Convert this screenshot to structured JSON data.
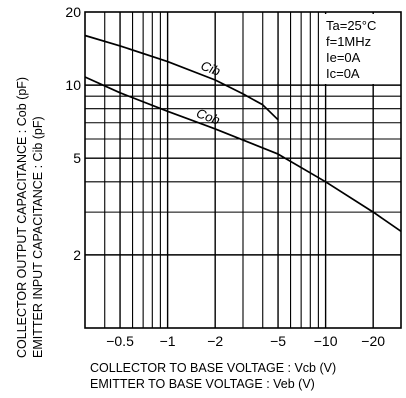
{
  "chart_data": {
    "type": "line",
    "title": "",
    "xscale": "log",
    "yscale": "log",
    "xlim": [
      0.3,
      30
    ],
    "ylim": [
      1,
      20
    ],
    "grid": true,
    "x_ticks": [
      {
        "value": 0.5,
        "label": "−0.5"
      },
      {
        "value": 1,
        "label": "−1"
      },
      {
        "value": 2,
        "label": "−2"
      },
      {
        "value": 5,
        "label": "−5"
      },
      {
        "value": 10,
        "label": "−10"
      },
      {
        "value": 20,
        "label": "−20"
      }
    ],
    "y_ticks": [
      {
        "value": 20,
        "label": "20"
      },
      {
        "value": 10,
        "label": "10"
      },
      {
        "value": 5,
        "label": "5"
      },
      {
        "value": 2,
        "label": "2"
      }
    ],
    "x_minor_gridlines": [
      0.4,
      0.6,
      0.7,
      0.8,
      0.9,
      3,
      4,
      6,
      7,
      8,
      9,
      30
    ],
    "y_minor_gridlines": [
      3,
      4,
      6,
      7,
      8,
      9
    ],
    "xlabel": [
      "COLLECTOR TO BASE VOLTAGE : Vcb (V)",
      "EMITTER TO BASE VOLTAGE : Veb (V)"
    ],
    "ylabel": [
      "COLLECTOR OUTPUT CAPACITANCE : Cob (pF)",
      "EMITTER INPUT CAPACITANCE : Cib (pF)"
    ],
    "series": [
      {
        "name": "Cib",
        "x": [
          0.3,
          0.5,
          1,
          2,
          3,
          4,
          5
        ],
        "y": [
          16,
          14.5,
          12.5,
          10.5,
          9.2,
          8.3,
          7.2
        ]
      },
      {
        "name": "Cob",
        "x": [
          0.3,
          0.5,
          1,
          2,
          5,
          10,
          20,
          30
        ],
        "y": [
          10.8,
          9.3,
          7.8,
          6.6,
          5.2,
          4.0,
          3.0,
          2.5
        ]
      }
    ],
    "legend": {
      "position": "top-right",
      "lines": [
        "Ta=25°C",
        "f=1MHz",
        "Ie=0A",
        "Ic=0A"
      ]
    }
  }
}
